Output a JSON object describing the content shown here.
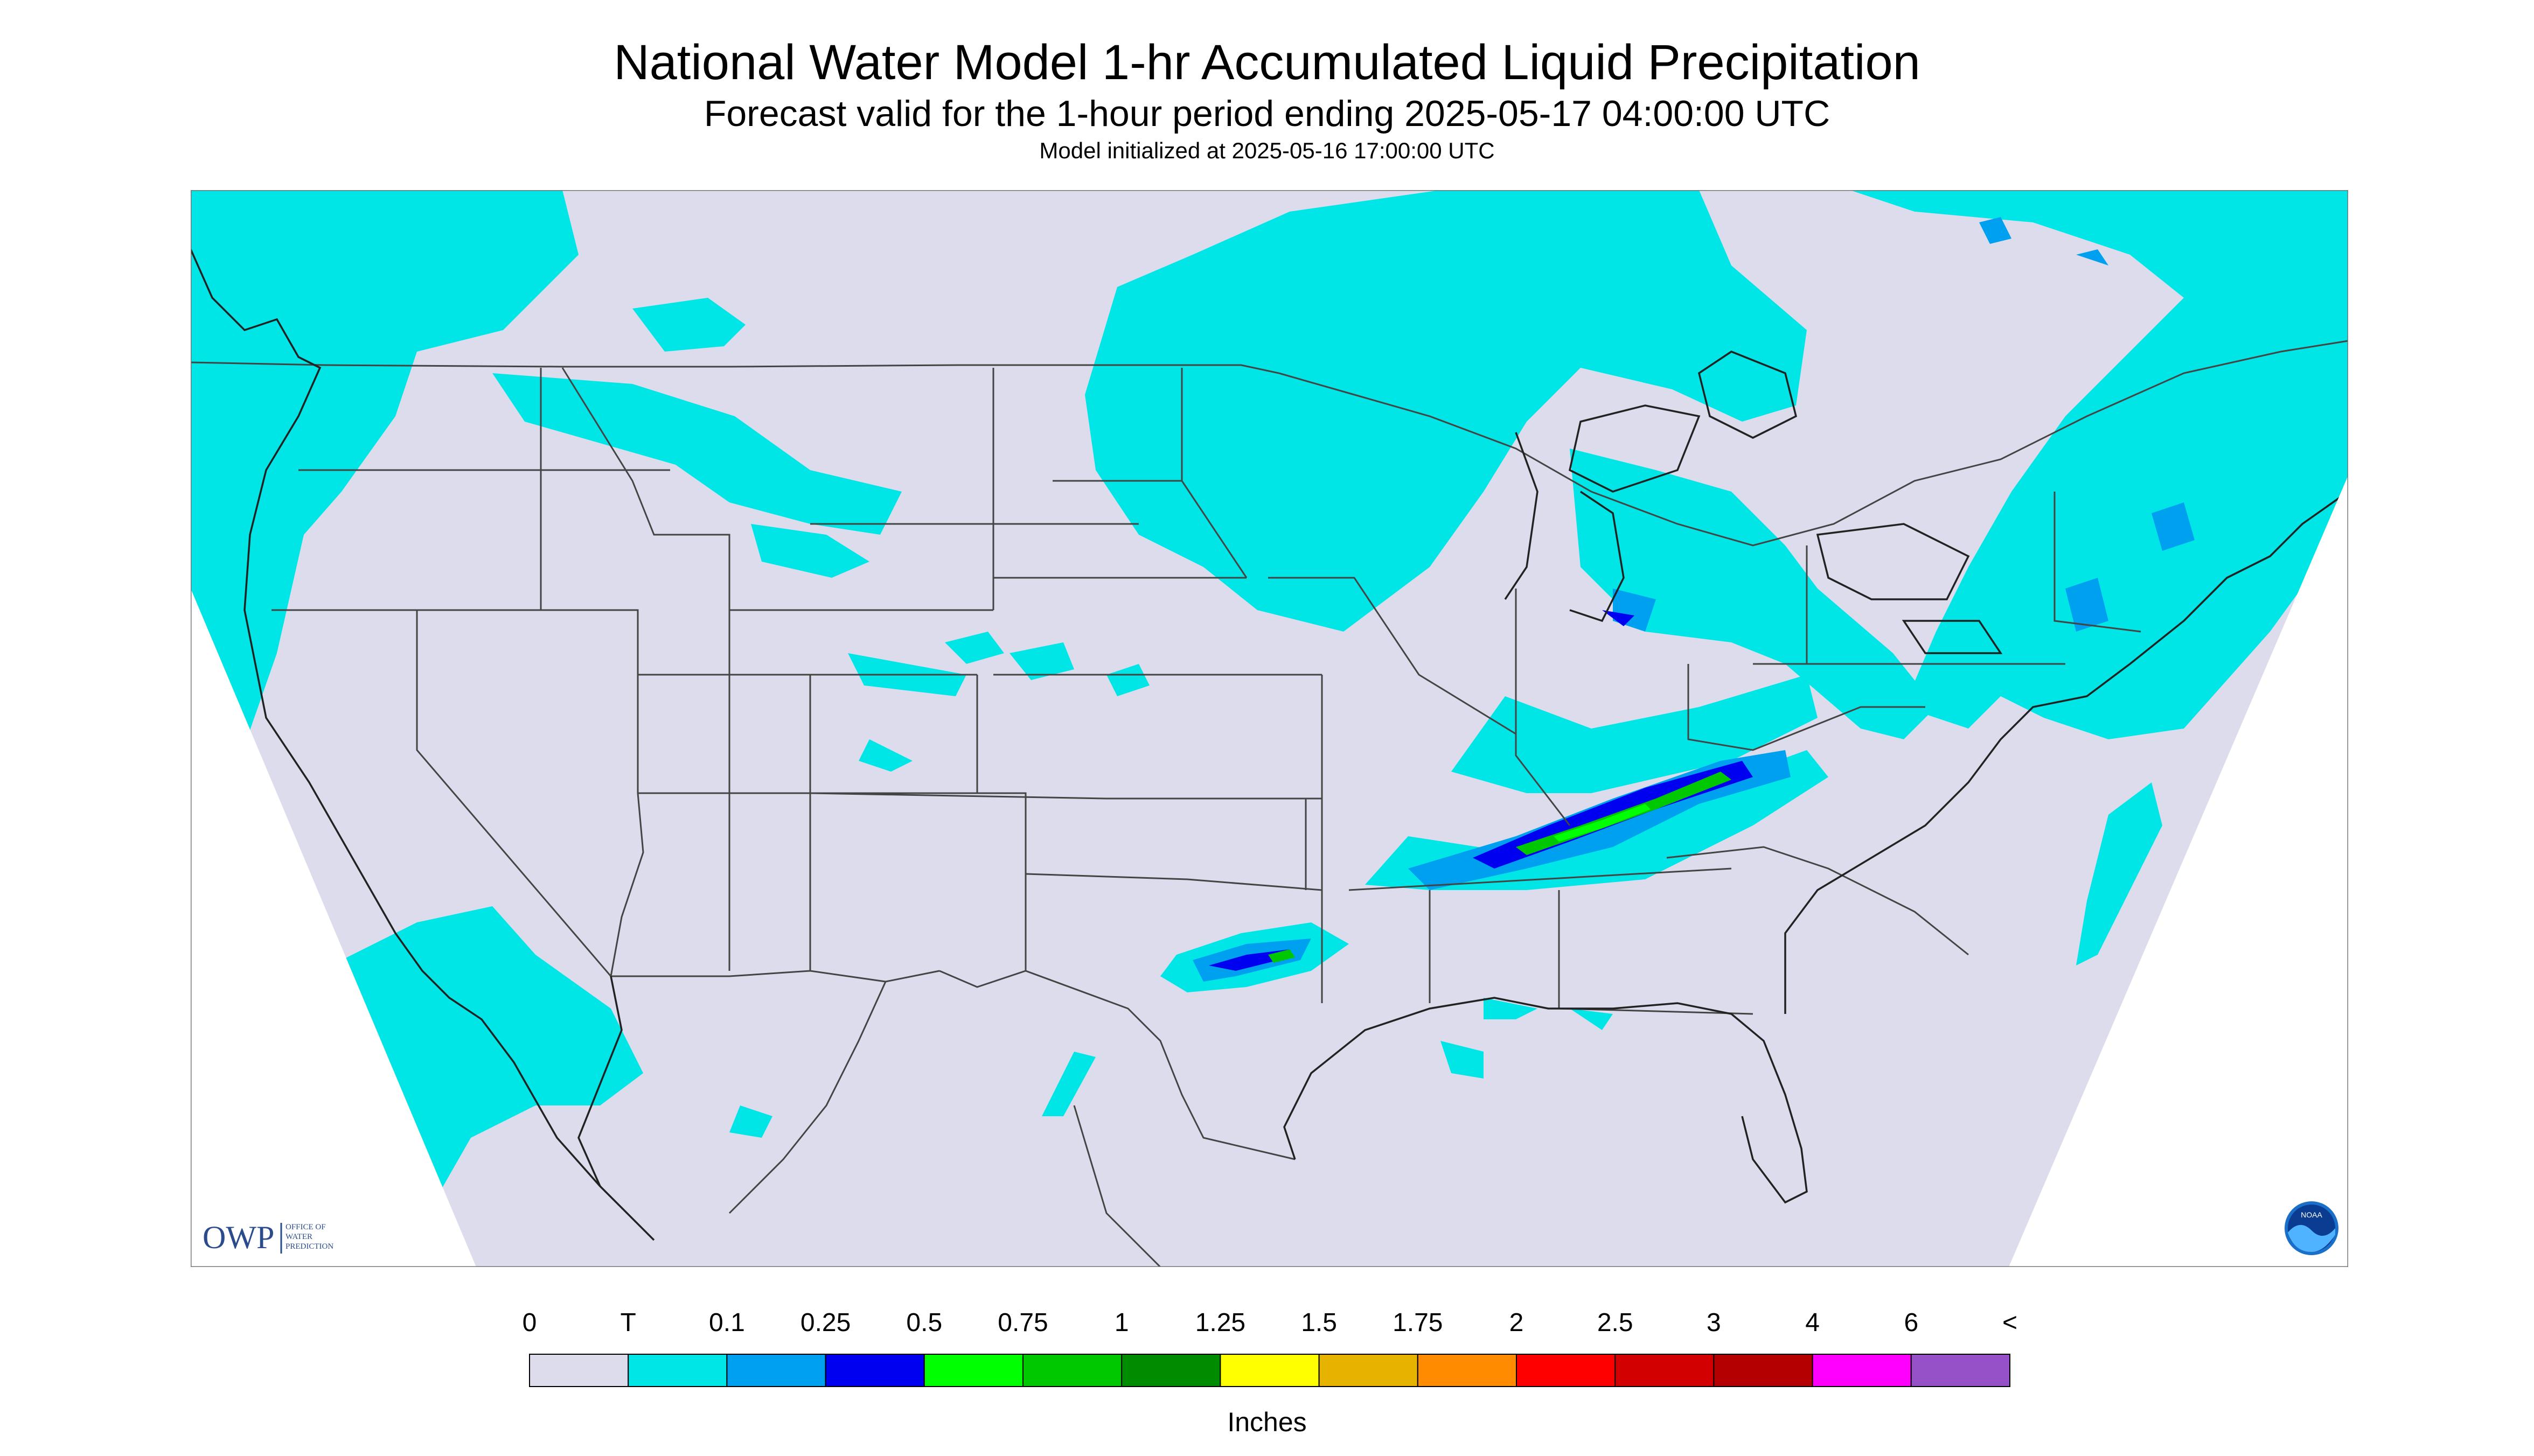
{
  "header": {
    "title": "National Water Model 1-hr Accumulated Liquid Precipitation",
    "subtitle": "Forecast valid for the 1-hour period ending 2025-05-17 04:00:00 UTC",
    "init": "Model initialized at 2025-05-16 17:00:00 UTC"
  },
  "logos": {
    "owp_abbrev": "OWP",
    "owp_line1": "OFFICE OF",
    "owp_line2": "WATER",
    "owp_line3": "PREDICTION",
    "noaa": "NOAA"
  },
  "legend": {
    "unit_label": "Inches",
    "tick_labels": [
      "0",
      "T",
      "0.1",
      "0.25",
      "0.5",
      "0.75",
      "1",
      "1.25",
      "1.5",
      "1.75",
      "2",
      "2.5",
      "3",
      "4",
      "6",
      "<"
    ],
    "colors": [
      "#dcdcec",
      "#00e6e6",
      "#00a0f0",
      "#0000f0",
      "#00ff00",
      "#00c800",
      "#008c00",
      "#ffff00",
      "#e6b400",
      "#ff8c00",
      "#ff0000",
      "#d20000",
      "#b40000",
      "#ff00ff",
      "#9650c8"
    ]
  },
  "map_style": {
    "background": "#dcdcec",
    "outside": "#ffffff",
    "border": "#555555",
    "light": "#00e6e6",
    "medium": "#00a0f0",
    "heavy": "#0000f0",
    "green": "#00c800",
    "lightgreen": "#00ff00"
  }
}
